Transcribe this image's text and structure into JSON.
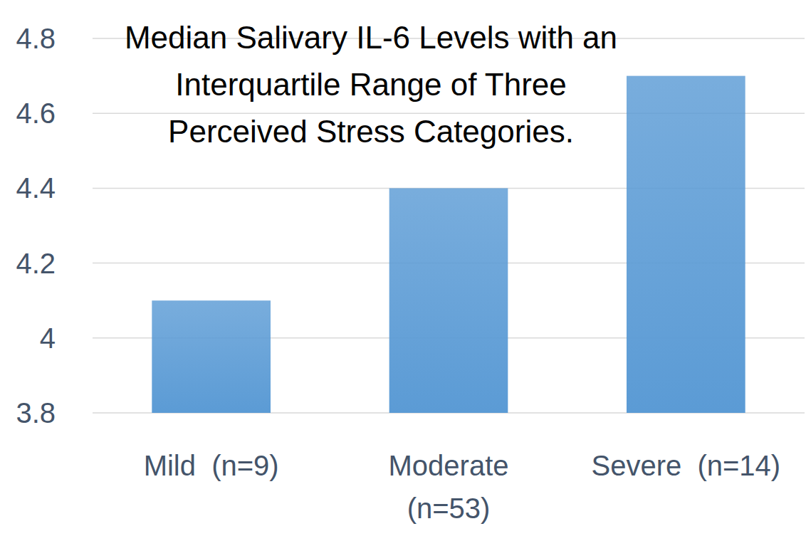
{
  "chart_data": {
    "type": "bar",
    "title": "Median Salivary IL-6 Levels with an\nInterquartile Range of Three\nPerceived Stress Categories.",
    "categories": [
      "Mild  (n=9)",
      "Moderate\n(n=53)",
      "Severe  (n=14)"
    ],
    "values": [
      4.1,
      4.4,
      4.7
    ],
    "color": "#5b9bd5",
    "ylim": [
      3.8,
      4.8
    ],
    "yticks": [
      3.8,
      4,
      4.2,
      4.4,
      4.6,
      4.8
    ],
    "grid": true
  }
}
